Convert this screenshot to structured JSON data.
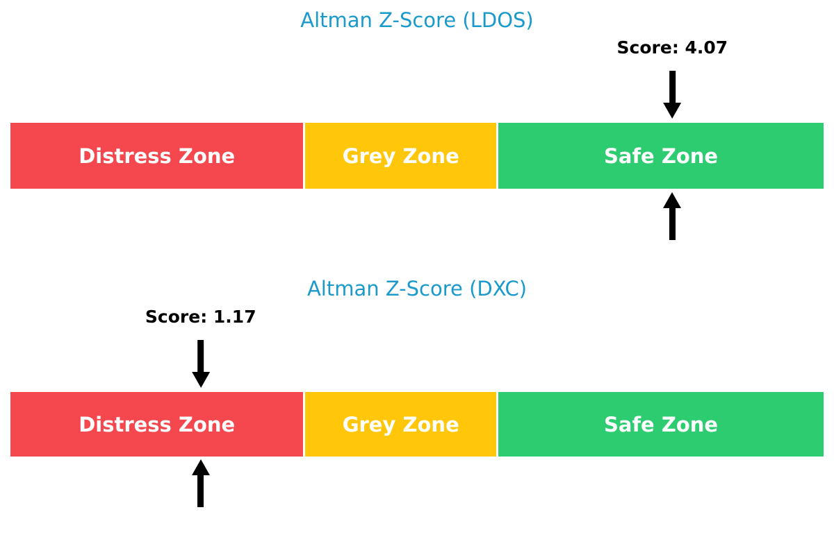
{
  "colors": {
    "background": "#ffffff",
    "title": "#1a9acb",
    "score_label": "#000000",
    "arrow": "#000000",
    "zone_label": "#ffffff"
  },
  "chart_data": [
    {
      "type": "bar",
      "title": "Altman Z-Score (LDOS)",
      "score": 4.07,
      "score_label": "Score: 4.07",
      "axis_range": [
        0,
        5
      ],
      "zones": [
        {
          "label": "Distress Zone",
          "color": "#f4474e",
          "start": 0,
          "end": 1.81
        },
        {
          "label": "Grey Zone",
          "color": "#ffc60a",
          "start": 1.81,
          "end": 2.99
        },
        {
          "label": "Safe Zone",
          "color": "#2dcc70",
          "start": 2.99,
          "end": 5
        }
      ],
      "legend": "none",
      "grid": "off"
    },
    {
      "type": "bar",
      "title": "Altman Z-Score (DXC)",
      "score": 1.17,
      "score_label": "Score: 1.17",
      "axis_range": [
        0,
        5
      ],
      "zones": [
        {
          "label": "Distress Zone",
          "color": "#f4474e",
          "start": 0,
          "end": 1.81
        },
        {
          "label": "Grey Zone",
          "color": "#ffc60a",
          "start": 1.81,
          "end": 2.99
        },
        {
          "label": "Safe Zone",
          "color": "#2dcc70",
          "start": 2.99,
          "end": 5
        }
      ],
      "legend": "none",
      "grid": "off"
    }
  ]
}
